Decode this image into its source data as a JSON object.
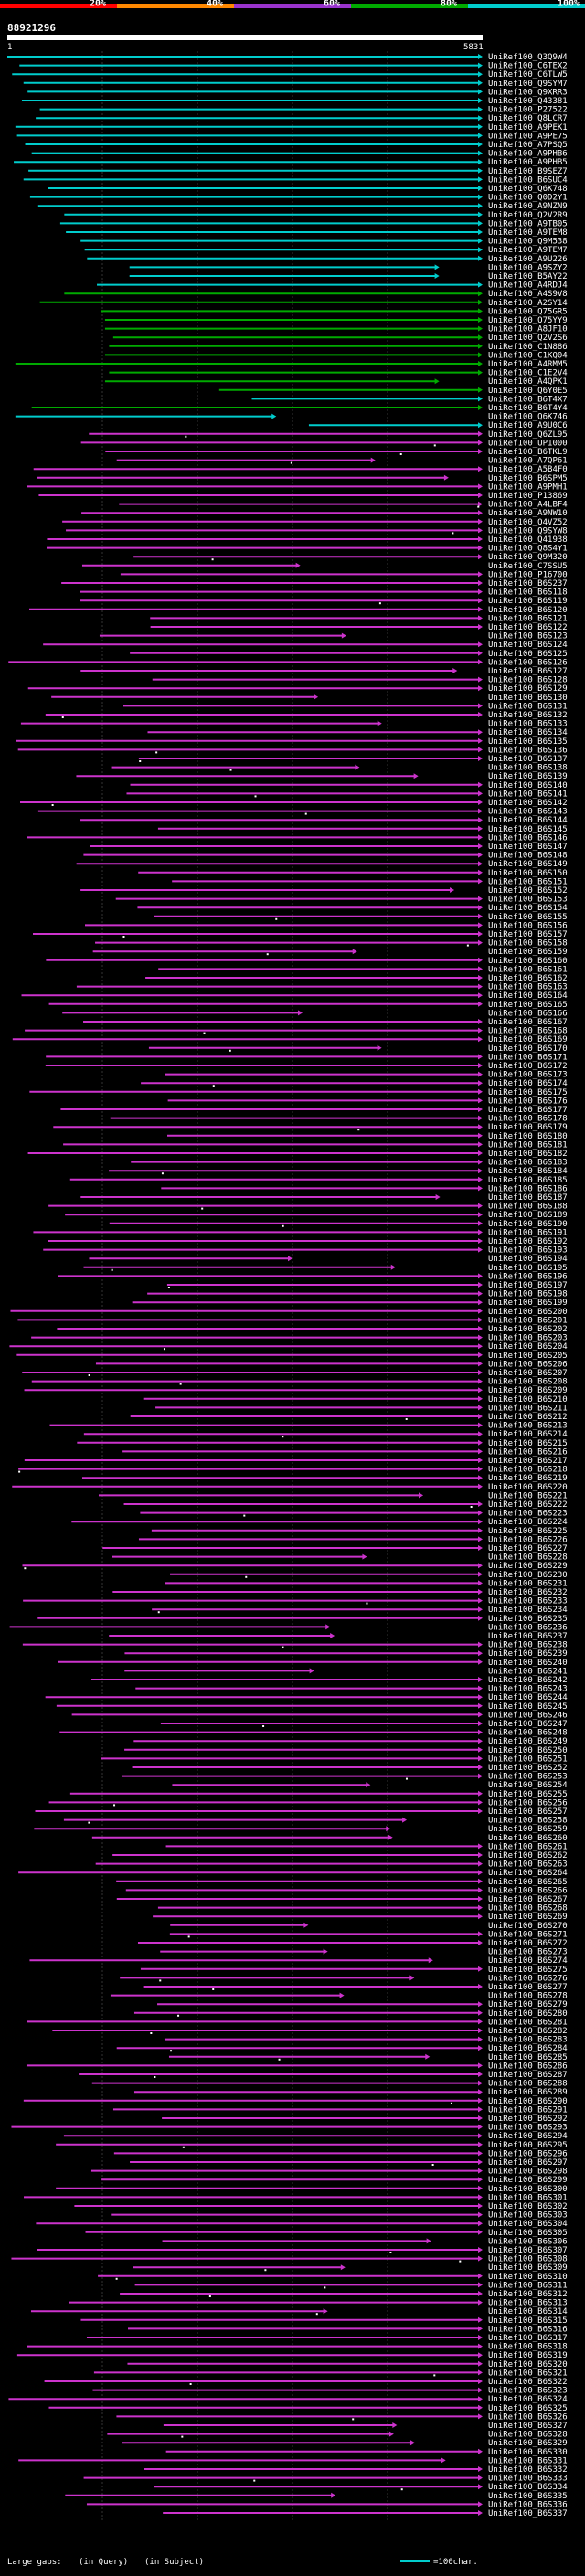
{
  "chart_data": {
    "type": "alignment-map",
    "title": "88921296",
    "axis_start": "1",
    "axis_end": "5831",
    "xlim": [
      1,
      5831
    ],
    "color_scale": {
      "labels": [
        "20%",
        "40%",
        "60%",
        "80%",
        "100%"
      ],
      "colors": [
        "#ff0000",
        "#ff8800",
        "#9933cc",
        "#00aa00",
        "#00cccc"
      ]
    },
    "legend": {
      "large_gaps": "Large gaps:",
      "in_query": "(in Query)",
      "in_subject": "(in Subject)",
      "scale": "=100char."
    },
    "rows": [
      {
        "label": "UniRef100_Q3Q9W4",
        "color": "#00cccc",
        "start": 1,
        "end": 5831,
        "arrow": true,
        "gap_x": null
      },
      {
        "label": "UniRef100_C6TEX2",
        "color": "#00cccc",
        "start": 150,
        "end": 5831,
        "arrow": true,
        "gap_x": null
      },
      {
        "label": "UniRef100_C6TLW5",
        "color": "#00cccc",
        "start": 60,
        "end": 5831,
        "arrow": true,
        "gap_x": null
      },
      {
        "label": "UniRef100_Q9SYM7",
        "color": "#00cccc",
        "start": 200,
        "end": 5831,
        "arrow": true,
        "gap_x": null
      },
      {
        "label": "UniRef100_Q9XRR3",
        "color": "#00cccc",
        "start": 250,
        "end": 5831,
        "arrow": true,
        "gap_x": null
      },
      {
        "label": "UniRef100_Q43381",
        "color": "#00cccc",
        "start": 180,
        "end": 5831,
        "arrow": true,
        "gap_x": null
      },
      {
        "label": "UniRef100_P27522",
        "color": "#00cccc",
        "start": 400,
        "end": 5831,
        "arrow": true,
        "gap_x": null
      },
      {
        "label": "UniRef100_Q8LCR7",
        "color": "#00cccc",
        "start": 350,
        "end": 5831,
        "arrow": true,
        "gap_x": null
      },
      {
        "label": "UniRef100_A9PEK1",
        "color": "#00cccc",
        "start": 100,
        "end": 5831,
        "arrow": true,
        "gap_x": null
      },
      {
        "label": "UniRef100_A9PE75",
        "color": "#00cccc",
        "start": 120,
        "end": 5831,
        "arrow": true,
        "gap_x": null
      },
      {
        "label": "UniRef100_A7PSQ5",
        "color": "#00cccc",
        "start": 220,
        "end": 5831,
        "arrow": true,
        "gap_x": null
      },
      {
        "label": "UniRef100_A9PHB6",
        "color": "#00cccc",
        "start": 300,
        "end": 5831,
        "arrow": true,
        "gap_x": null
      },
      {
        "label": "UniRef100_A9PHB5",
        "color": "#00cccc",
        "start": 80,
        "end": 5831,
        "arrow": true,
        "gap_x": null
      },
      {
        "label": "UniRef100_B9SEZ7",
        "color": "#00cccc",
        "start": 260,
        "end": 5831,
        "arrow": true,
        "gap_x": null
      },
      {
        "label": "UniRef100_B6SUC4",
        "color": "#00cccc",
        "start": 200,
        "end": 5831,
        "arrow": true,
        "gap_x": null
      },
      {
        "label": "UniRef100_Q6K748",
        "color": "#00cccc",
        "start": 500,
        "end": 5831,
        "arrow": true,
        "gap_x": null
      },
      {
        "label": "UniRef100_Q0D2Y1",
        "color": "#00cccc",
        "start": 280,
        "end": 5831,
        "arrow": true,
        "gap_x": null
      },
      {
        "label": "UniRef100_A9NZN9",
        "color": "#00cccc",
        "start": 380,
        "end": 5831,
        "arrow": true,
        "gap_x": null
      },
      {
        "label": "UniRef100_Q2V2R9",
        "color": "#00cccc",
        "start": 700,
        "end": 5831,
        "arrow": true,
        "gap_x": null
      },
      {
        "label": "UniRef100_A9TB05",
        "color": "#00cccc",
        "start": 650,
        "end": 5831,
        "arrow": true,
        "gap_x": null
      },
      {
        "label": "UniRef100_A9TEM8",
        "color": "#00cccc",
        "start": 720,
        "end": 5831,
        "arrow": true,
        "gap_x": null
      },
      {
        "label": "UniRef100_Q9M538",
        "color": "#00cccc",
        "start": 900,
        "end": 5831,
        "arrow": true,
        "gap_x": null
      },
      {
        "label": "UniRef100_A9TEM7",
        "color": "#00cccc",
        "start": 950,
        "end": 5831,
        "arrow": true,
        "gap_x": null
      },
      {
        "label": "UniRef100_A9U226",
        "color": "#00cccc",
        "start": 980,
        "end": 5831,
        "arrow": true,
        "gap_x": null
      },
      {
        "label": "UniRef100_A9SZY2",
        "color": "#00cccc",
        "start": 1500,
        "end": 5300,
        "arrow": true,
        "gap_x": null
      },
      {
        "label": "UniRef100_B5AY22",
        "color": "#00cccc",
        "start": 1500,
        "end": 5300,
        "arrow": true,
        "gap_x": null
      },
      {
        "label": "UniRef100_A4RDJ4",
        "color": "#00cccc",
        "start": 1100,
        "end": 5831,
        "arrow": true,
        "gap_x": null
      },
      {
        "label": "UniRef100_A4S9V8",
        "color": "#00aa00",
        "start": 700,
        "end": 5831,
        "arrow": true,
        "gap_x": null
      },
      {
        "label": "UniRef100_A2SY14",
        "color": "#00aa00",
        "start": 400,
        "end": 5831,
        "arrow": true,
        "gap_x": null
      },
      {
        "label": "UniRef100_Q75GR5",
        "color": "#00aa00",
        "start": 1150,
        "end": 5831,
        "arrow": true,
        "gap_x": null
      },
      {
        "label": "UniRef100_Q75YY9",
        "color": "#00aa00",
        "start": 1200,
        "end": 5831,
        "arrow": true,
        "gap_x": null
      },
      {
        "label": "UniRef100_A8JF10",
        "color": "#00aa00",
        "start": 1200,
        "end": 5831,
        "arrow": true,
        "gap_x": null
      },
      {
        "label": "UniRef100_Q2V2S6",
        "color": "#00aa00",
        "start": 1300,
        "end": 5831,
        "arrow": true,
        "gap_x": null
      },
      {
        "label": "UniRef100_C1N886",
        "color": "#00aa00",
        "start": 1250,
        "end": 5831,
        "arrow": true,
        "gap_x": null
      },
      {
        "label": "UniRef100_C1KQ04",
        "color": "#00aa00",
        "start": 1200,
        "end": 5831,
        "arrow": true,
        "gap_x": null
      },
      {
        "label": "UniRef100_A4RMM5",
        "color": "#00aa00",
        "start": 100,
        "end": 5831,
        "arrow": true,
        "gap_x": null
      },
      {
        "label": "UniRef100_C1E2V4",
        "color": "#00aa00",
        "start": 1250,
        "end": 5831,
        "arrow": true,
        "gap_x": null
      },
      {
        "label": "UniRef100_A4QPK1",
        "color": "#00aa00",
        "start": 1200,
        "end": 5300,
        "arrow": true,
        "gap_x": null
      },
      {
        "label": "UniRef100_Q6Y0E5",
        "color": "#00aa00",
        "start": 2600,
        "end": 5831,
        "arrow": true,
        "gap_x": null
      },
      {
        "label": "UniRef100_B6T4X7",
        "color": "#00cccc",
        "start": 3000,
        "end": 5831,
        "arrow": true,
        "gap_x": null
      },
      {
        "label": "UniRef100_B6T4Y4",
        "color": "#00aa00",
        "start": 300,
        "end": 5831,
        "arrow": true,
        "gap_x": null
      },
      {
        "label": "UniRef100_Q6K746",
        "color": "#00cccc",
        "start": 100,
        "end": 3300,
        "arrow": true,
        "gap_x": null
      },
      {
        "label": "UniRef100_A9U0C6",
        "color": "#00cccc",
        "start": 3700,
        "end": 5831,
        "arrow": true,
        "gap_x": null
      }
    ],
    "filler_rows": {
      "count": 238,
      "color": "#cc33cc",
      "label_prefix": "UniRef100_",
      "first_labels": [
        "Q6ZL95",
        "UP1000",
        "B6TKL9",
        "A7QP61",
        "A5B4F0",
        "B6SPM5",
        "A9PMH1",
        "P13869",
        "A4LBF4",
        "A9NW10",
        "Q4VZ52",
        "Q9SYW8",
        "Q41938",
        "Q8S4Y1",
        "Q9M320",
        "C7SSU5",
        "P16700",
        "B6S237"
      ]
    }
  }
}
